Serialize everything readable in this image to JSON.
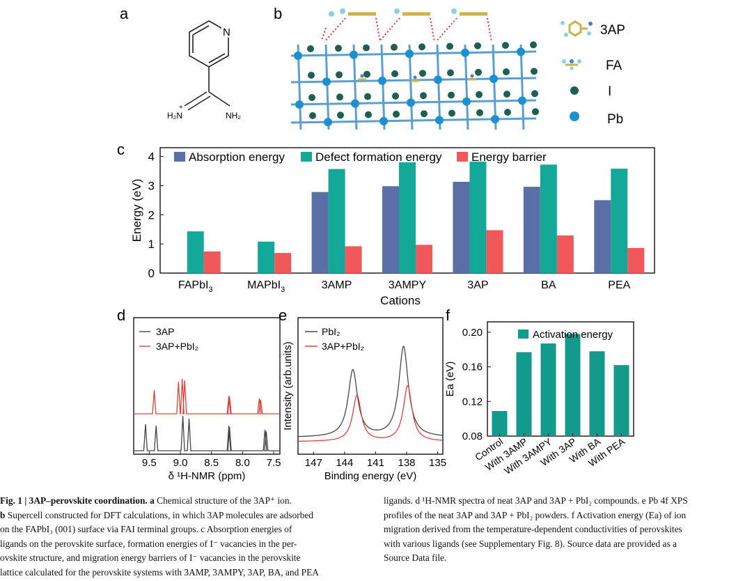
{
  "panels": {
    "a": "a",
    "b": "b",
    "c": "c",
    "d": "d",
    "e": "e",
    "f": "f"
  },
  "panel_a": {
    "atom_n": "N",
    "nh2_left": "H₂N",
    "nh2_left_plus": "+",
    "nh2_right": "NH₂"
  },
  "panel_b": {
    "legend": [
      "3AP",
      "FA",
      "I",
      "Pb"
    ]
  },
  "colors": {
    "absorption": "#5a6fa6",
    "defect": "#14a898",
    "barrier": "#f0585a",
    "activation": "#139a8c",
    "nmr_black": "#444444",
    "nmr_red": "#e0403a"
  },
  "chart_data": [
    {
      "panel": "c",
      "type": "bar",
      "xlabel": "Cations",
      "ylabel": "Energy (eV)",
      "ylim": [
        0,
        4.3
      ],
      "yticks": [
        "0",
        "1",
        "2",
        "3",
        "4"
      ],
      "categories": [
        "FAPbI3",
        "MAPbI3",
        "3AMP",
        "3AMPY",
        "3AP",
        "BA",
        "PEA"
      ],
      "category_labels": [
        {
          "main": "FAPbI",
          "sub": "3"
        },
        {
          "main": "MAPbI",
          "sub": "3"
        },
        {
          "main": "3AMP",
          "sub": ""
        },
        {
          "main": "3AMPY",
          "sub": ""
        },
        {
          "main": "3AP",
          "sub": ""
        },
        {
          "main": "BA",
          "sub": ""
        },
        {
          "main": "PEA",
          "sub": ""
        }
      ],
      "series": [
        {
          "name": "Absorption energy",
          "values": [
            null,
            null,
            2.78,
            2.98,
            3.13,
            2.96,
            2.5
          ]
        },
        {
          "name": "Defect formation energy",
          "values": [
            1.43,
            1.08,
            3.57,
            3.8,
            3.82,
            3.72,
            3.58
          ]
        },
        {
          "name": "Energy barrier",
          "values": [
            0.74,
            0.69,
            0.92,
            0.97,
            1.47,
            1.29,
            0.86
          ]
        }
      ],
      "legend": "top"
    },
    {
      "panel": "d",
      "type": "line",
      "xlabel": "δ ¹H-NMR (ppm)",
      "xlim": [
        9.75,
        7.4
      ],
      "xticks": [
        "9.5",
        "9.0",
        "8.5",
        "8.0",
        "7.5"
      ],
      "series": [
        {
          "name": "3AP",
          "peaks_ppm": [
            9.56,
            9.39,
            8.96,
            8.86,
            8.22,
            8.21,
            7.64,
            7.62
          ]
        },
        {
          "name": "3AP+PbI₂",
          "peaks_ppm": [
            9.42,
            9.03,
            8.97,
            8.93,
            8.22,
            8.21,
            7.73,
            7.71
          ]
        }
      ],
      "legend": [
        "3AP",
        "3AP+PbI₂"
      ]
    },
    {
      "panel": "e",
      "type": "line",
      "xlabel": "Binding energy (eV)",
      "ylabel": "Intensity (arb.units)",
      "xlim": [
        148.5,
        134.5
      ],
      "xticks": [
        "147",
        "144",
        "141",
        "138",
        "135"
      ],
      "series": [
        {
          "name": "PbI₂",
          "peaks_eV": [
            143.2,
            138.3
          ]
        },
        {
          "name": "3AP+PbI₂",
          "peaks_eV": [
            142.8,
            137.9
          ]
        }
      ],
      "legend": [
        "PbI₂",
        "3AP+PbI₂"
      ]
    },
    {
      "panel": "f",
      "type": "bar",
      "ylabel": "Ea (eV)",
      "ylim": [
        0.08,
        0.212
      ],
      "yticks": [
        "0.08",
        "0.12",
        "0.16",
        "0.20"
      ],
      "categories": [
        "Control",
        "With 3AMP",
        "With 3AMPY",
        "With 3AP",
        "With BA",
        "With PEA"
      ],
      "series": [
        {
          "name": "Activation energy",
          "values": [
            0.109,
            0.177,
            0.187,
            0.198,
            0.178,
            0.162
          ]
        }
      ],
      "legend": "top-right"
    }
  ],
  "caption": {
    "left": [
      {
        "bold": "Fig. 1 | 3AP–perovskite coordination. a",
        "text": " Chemical structure of the 3AP⁺ ion."
      },
      {
        "bold": "b",
        "text": " Supercell constructed for DFT calculations, in which 3AP molecules are adsorbed"
      },
      {
        "bold": "",
        "text": "on the FAPbI₃ (001) surface via FAI terminal groups. c Absorption energies of"
      },
      {
        "bold": "",
        "text": "ligands on the perovskite surface, formation energies of I⁻ vacancies in the per-"
      },
      {
        "bold": "",
        "text": "ovskite structure, and migration energy barriers of I⁻ vacancies in the perovskite"
      },
      {
        "bold": "",
        "text": "lattice calculated for the perovskite systems with 3AMP, 3AMPY, 3AP, BA, and PEA"
      }
    ],
    "right": [
      "ligands. d ¹H-NMR spectra of neat 3AP and 3AP + PbI₂ compounds. e Pb 4f XPS",
      "profiles of the neat 3AP and 3AP + PbI₂ powders. f Activation energy (Ea) of ion",
      "migration derived from the temperature-dependent conductivities of perovskites",
      "with various ligands (see Supplementary Fig. 8). Source data are provided as a",
      "Source Data file."
    ]
  }
}
